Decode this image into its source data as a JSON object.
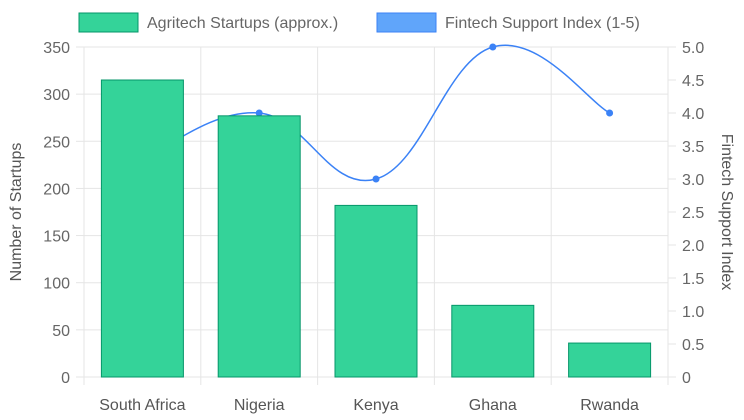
{
  "chart_data": {
    "type": "bar",
    "categories": [
      "South Africa",
      "Nigeria",
      "Kenya",
      "Ghana",
      "Rwanda"
    ],
    "series": [
      {
        "name": "Agritech Startups (approx.)",
        "type": "bar",
        "axis": "left",
        "values": [
          315,
          277,
          182,
          76,
          36
        ],
        "color": "#34d399",
        "border_color": "#059669"
      },
      {
        "name": "Fintech Support Index (1-5)",
        "type": "line",
        "axis": "right",
        "values": [
          3.3,
          4.0,
          3.0,
          5.0,
          4.0
        ],
        "color": "#60a5fa",
        "line_color": "#3b82f6",
        "point_color": "#3b82f6"
      }
    ],
    "ylabel": "Number of Startups",
    "ylabel_right": "Fintech Support Index",
    "ylim": [
      0,
      350
    ],
    "yticks": [
      "0",
      "50",
      "100",
      "150",
      "200",
      "250",
      "300",
      "350"
    ],
    "ylim_right": [
      0,
      5
    ],
    "yticks_right": [
      "0",
      "0.5",
      "1.0",
      "1.5",
      "2.0",
      "2.5",
      "3.0",
      "3.5",
      "4.0",
      "4.5",
      "5.0"
    ],
    "grid": true,
    "legend_position": "top"
  }
}
